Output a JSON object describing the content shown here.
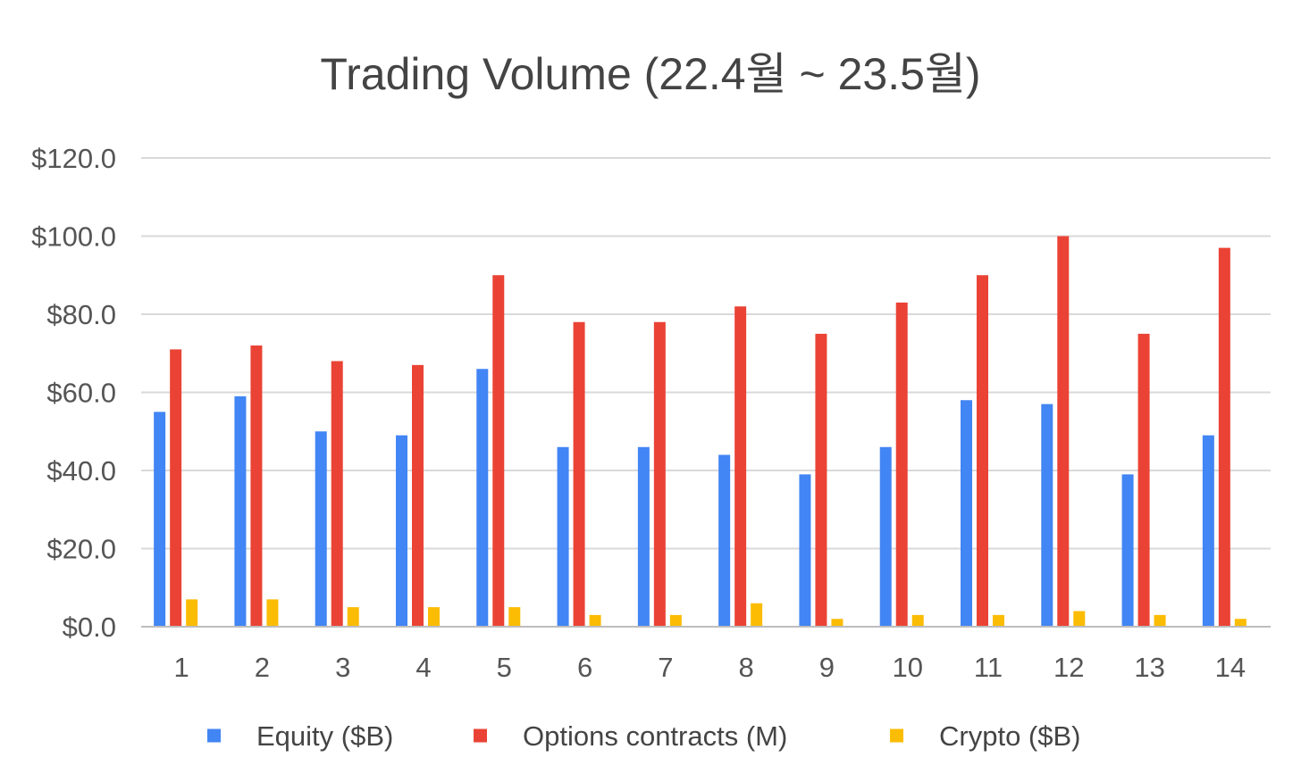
{
  "chart_data": {
    "type": "bar",
    "title": "Trading Volume (22.4월 ~ 23.5월)",
    "xlabel": "",
    "ylabel": "",
    "categories": [
      "1",
      "2",
      "3",
      "4",
      "5",
      "6",
      "7",
      "8",
      "9",
      "10",
      "11",
      "12",
      "13",
      "14"
    ],
    "ylim": [
      0,
      120
    ],
    "yticks": [
      0,
      20,
      40,
      60,
      80,
      100,
      120
    ],
    "ytick_labels": [
      "$0.0",
      "$20.0",
      "$40.0",
      "$60.0",
      "$80.0",
      "$100.0",
      "$120.0"
    ],
    "grid": true,
    "legend_position": "bottom",
    "series": [
      {
        "name": "Equity ($B)",
        "color": "#4285f4",
        "values": [
          55,
          59,
          50,
          49,
          66,
          46,
          46,
          44,
          39,
          46,
          58,
          57,
          39,
          49
        ]
      },
      {
        "name": "Options contracts (M)",
        "color": "#ea4335",
        "values": [
          71,
          72,
          68,
          67,
          90,
          78,
          78,
          82,
          75,
          83,
          90,
          100,
          75,
          97
        ]
      },
      {
        "name": "Crypto ($B)",
        "color": "#fbbc04",
        "values": [
          7,
          7,
          5,
          5,
          5,
          3,
          3,
          6,
          2,
          3,
          3,
          4,
          3,
          2
        ]
      }
    ]
  }
}
